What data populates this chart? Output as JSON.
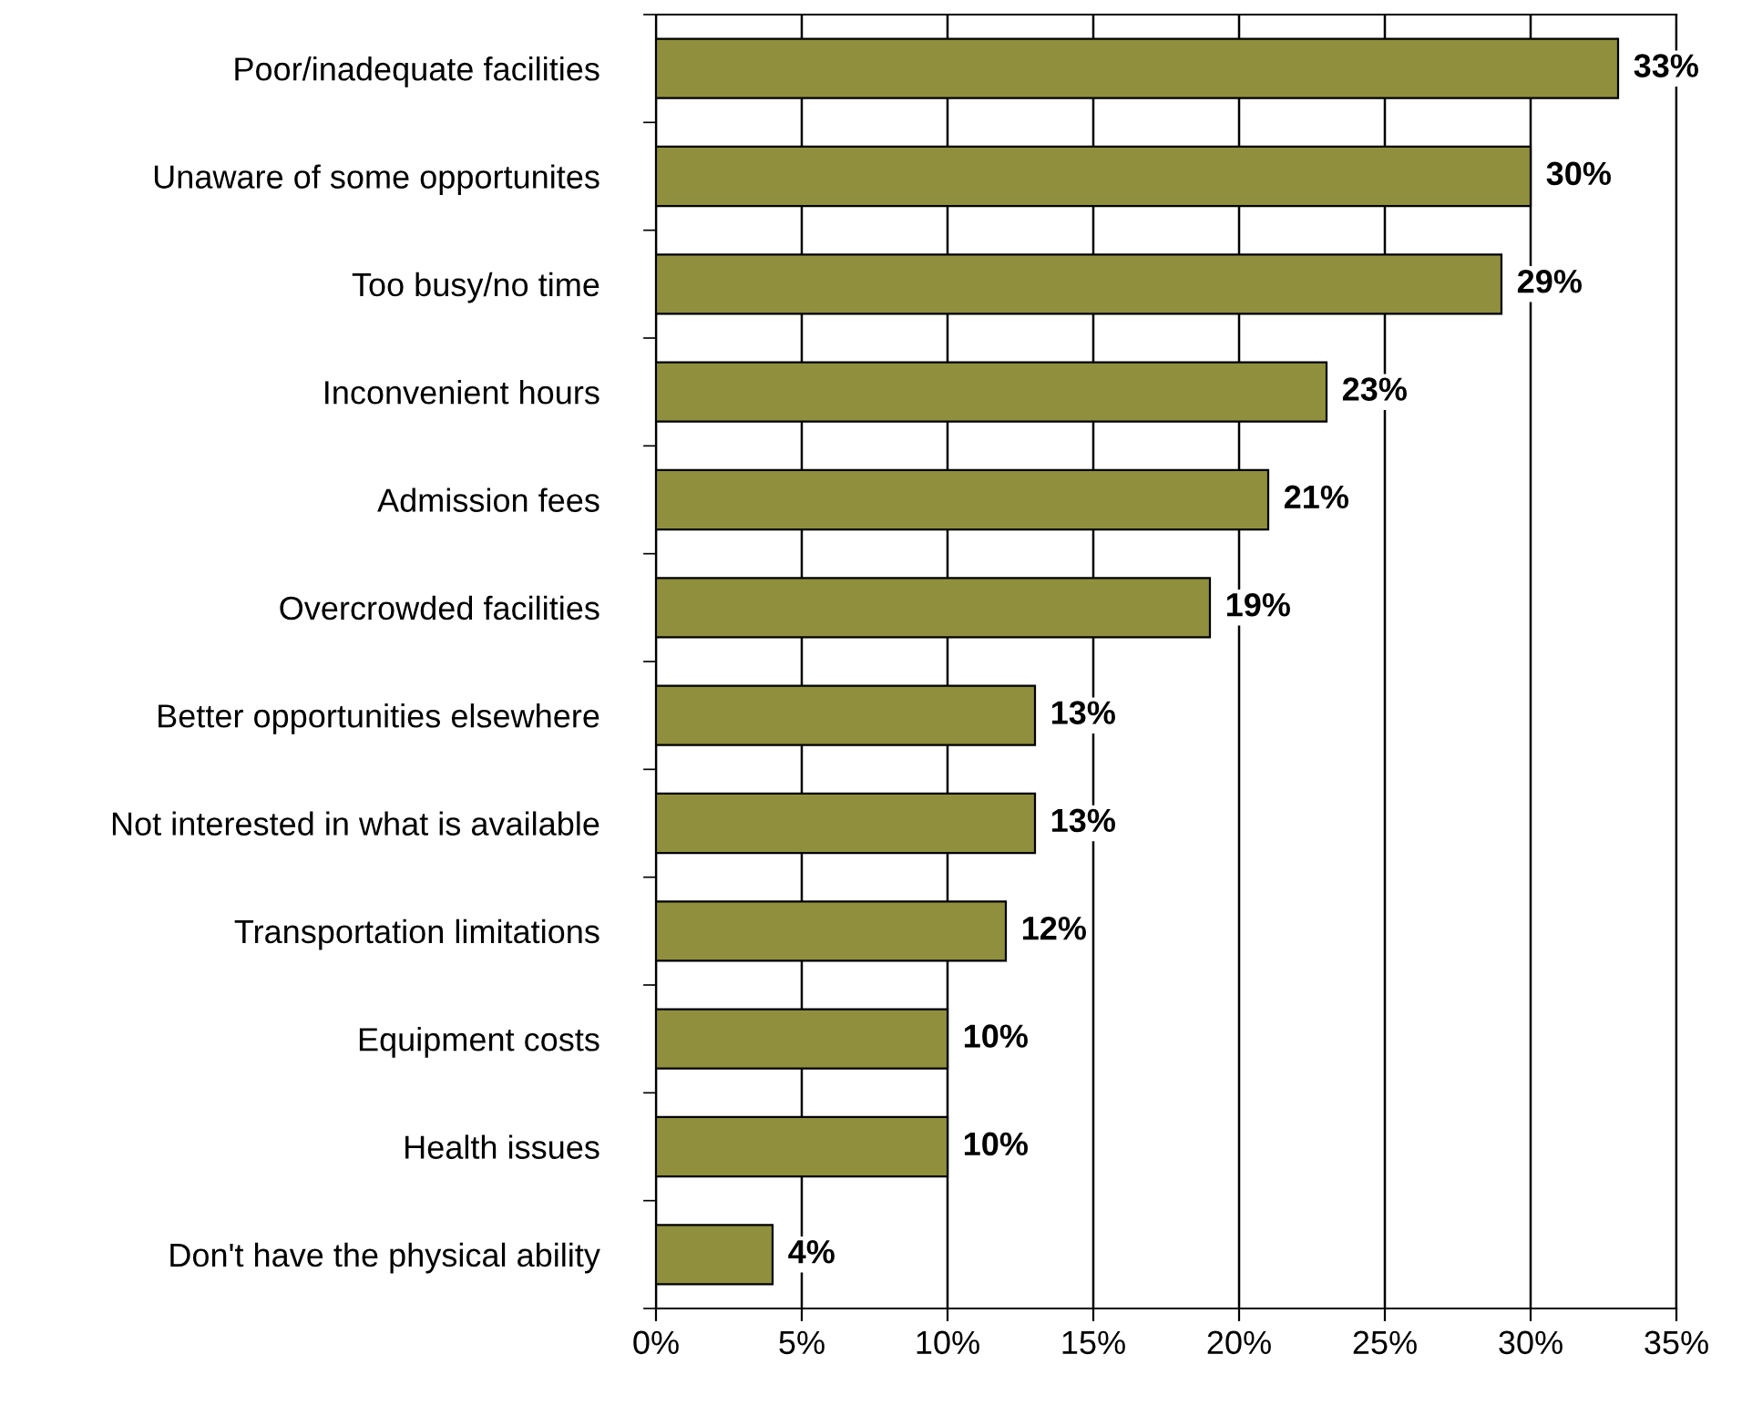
{
  "chart_data": {
    "type": "bar",
    "orientation": "horizontal",
    "categories": [
      "Poor/inadequate facilities",
      "Unaware of some opportunites",
      "Too busy/no time",
      "Inconvenient hours",
      "Admission fees",
      "Overcrowded facilities",
      "Better opportunities elsewhere",
      "Not interested in what is available",
      "Transportation limitations",
      "Equipment costs",
      "Health issues",
      "Don't have the physical ability"
    ],
    "values": [
      33,
      30,
      29,
      23,
      21,
      19,
      13,
      13,
      12,
      10,
      10,
      4
    ],
    "value_labels": [
      "33%",
      "30%",
      "29%",
      "23%",
      "21%",
      "19%",
      "13%",
      "13%",
      "12%",
      "10%",
      "10%",
      "4%"
    ],
    "color": "#8f8f3d",
    "xlim": [
      0,
      35
    ],
    "xticks": [
      {
        "value": 0,
        "label": "0%"
      },
      {
        "value": 5,
        "label": "5%"
      },
      {
        "value": 10,
        "label": "10%"
      },
      {
        "value": 15,
        "label": "15%"
      },
      {
        "value": 20,
        "label": "20%"
      },
      {
        "value": 25,
        "label": "25%"
      },
      {
        "value": 30,
        "label": "30%"
      },
      {
        "value": 35,
        "label": "35%"
      }
    ],
    "grid": "x",
    "legend": false
  }
}
